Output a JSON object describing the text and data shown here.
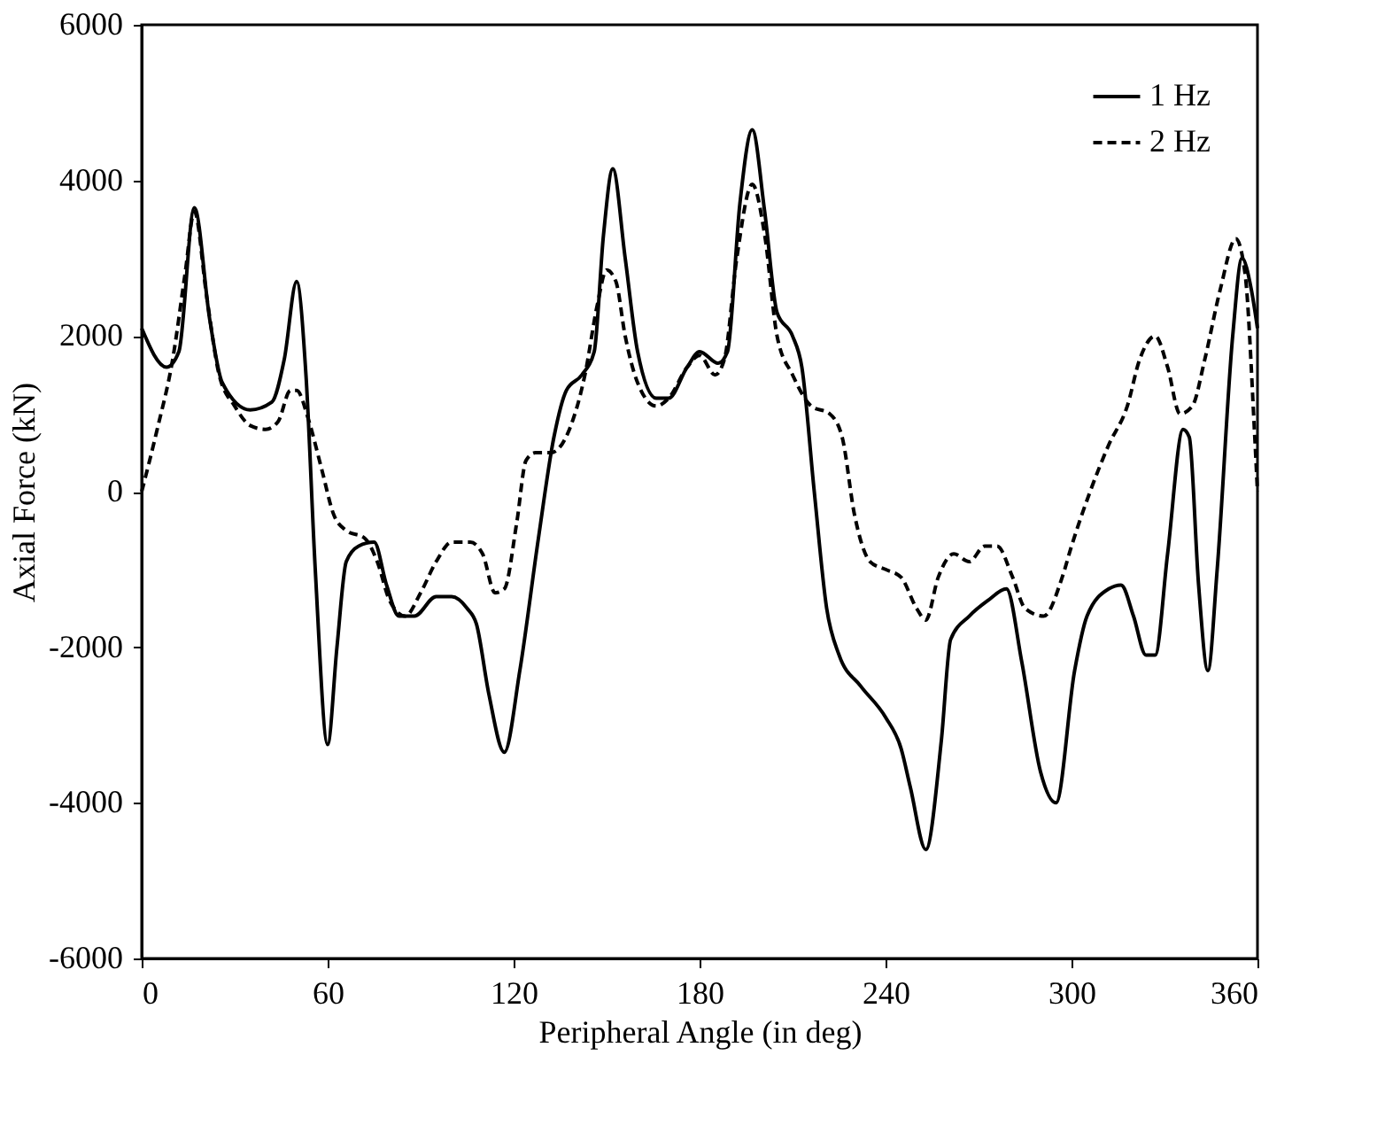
{
  "chart_data": {
    "type": "line",
    "xlabel": "Peripheral Angle (in deg)",
    "ylabel": "Axial Force (kN)",
    "xlim": [
      0,
      360
    ],
    "xticks": [
      0,
      60,
      120,
      180,
      240,
      300,
      360
    ],
    "ylim": [
      -6000,
      6000
    ],
    "yticks": [
      -6000,
      -4000,
      -2000,
      0,
      2000,
      4000,
      6000
    ],
    "grid": false,
    "legend": "top right",
    "series": [
      {
        "name": "1 Hz",
        "color": "#000000",
        "line_style": "solid",
        "x": [
          0,
          8,
          12,
          17,
          22,
          26,
          35,
          42,
          46,
          50,
          53,
          56,
          60,
          63,
          66,
          70,
          75,
          79,
          83,
          88,
          95,
          100,
          105,
          108,
          112,
          117,
          122,
          128,
          133,
          137,
          142,
          146,
          149,
          152,
          156,
          160,
          166,
          170,
          176,
          180,
          186,
          189,
          193,
          197,
          201,
          205,
          210,
          213,
          217,
          221,
          225,
          232,
          240,
          245,
          248,
          253,
          258,
          261,
          267,
          273,
          279,
          284,
          290,
          295,
          301,
          305,
          312,
          316,
          320,
          324,
          327,
          331,
          336,
          338,
          341,
          344,
          347,
          352,
          355,
          358,
          360
        ],
        "values": [
          2100,
          1600,
          1800,
          3650,
          2200,
          1400,
          1050,
          1150,
          1700,
          2700,
          1500,
          -1000,
          -3250,
          -2000,
          -900,
          -700,
          -650,
          -1200,
          -1600,
          -1600,
          -1350,
          -1350,
          -1500,
          -1700,
          -2600,
          -3350,
          -2300,
          -600,
          700,
          1300,
          1500,
          1800,
          3300,
          4150,
          3000,
          1800,
          1200,
          1200,
          1600,
          1800,
          1650,
          1800,
          3700,
          4650,
          3600,
          2300,
          2000,
          1600,
          0,
          -1500,
          -2100,
          -2500,
          -2900,
          -3300,
          -3800,
          -4600,
          -3200,
          -1900,
          -1600,
          -1400,
          -1250,
          -2200,
          -3600,
          -4000,
          -2300,
          -1600,
          -1250,
          -1200,
          -1600,
          -2100,
          -2100,
          -800,
          800,
          700,
          -1200,
          -2300,
          -1000,
          2000,
          3000,
          2600,
          2100
        ]
      },
      {
        "name": "2 Hz",
        "color": "#000000",
        "line_style": "dashed",
        "x": [
          0,
          5,
          10,
          14,
          17,
          21,
          25,
          30,
          35,
          40,
          44,
          48,
          50,
          54,
          58,
          62,
          66,
          72,
          76,
          80,
          85,
          90,
          95,
          100,
          106,
          110,
          114,
          117,
          121,
          124,
          127,
          132,
          138,
          143,
          147,
          150,
          153,
          156,
          160,
          166,
          170,
          176,
          180,
          185,
          188,
          192,
          197,
          201,
          205,
          210,
          216,
          222,
          226,
          230,
          235,
          240,
          245,
          250,
          253,
          257,
          262,
          267,
          272,
          276,
          281,
          285,
          291,
          297,
          300,
          306,
          312,
          318,
          322,
          327,
          331,
          335,
          339,
          343,
          348,
          353,
          356,
          359,
          360
        ],
        "values": [
          0,
          800,
          1700,
          2800,
          3600,
          2500,
          1500,
          1100,
          850,
          800,
          900,
          1300,
          1300,
          900,
          300,
          -300,
          -500,
          -600,
          -900,
          -1400,
          -1600,
          -1300,
          -900,
          -650,
          -650,
          -800,
          -1300,
          -1250,
          -400,
          400,
          500,
          500,
          800,
          1500,
          2400,
          2850,
          2700,
          2000,
          1400,
          1100,
          1200,
          1600,
          1750,
          1500,
          1700,
          3000,
          3950,
          3300,
          2000,
          1500,
          1100,
          1000,
          700,
          -300,
          -900,
          -1000,
          -1100,
          -1500,
          -1650,
          -1100,
          -800,
          -900,
          -700,
          -700,
          -1100,
          -1500,
          -1600,
          -1100,
          -700,
          0,
          600,
          1100,
          1700,
          2000,
          1600,
          1000,
          1100,
          1700,
          2600,
          3250,
          2800,
          800,
          0
        ]
      }
    ]
  }
}
